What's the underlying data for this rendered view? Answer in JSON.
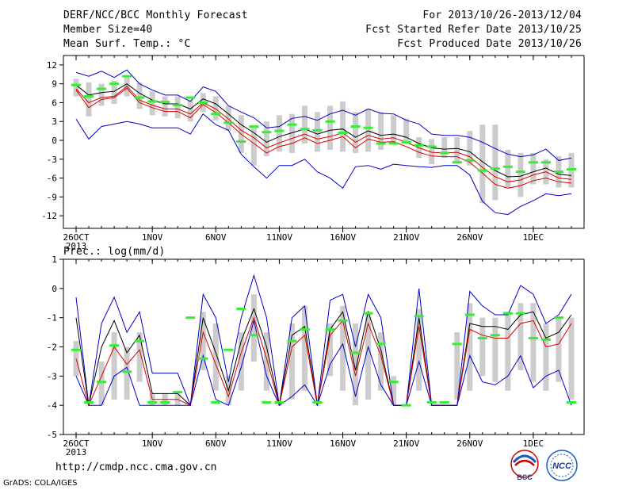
{
  "header": {
    "line1_left": "DERF/NCC/BCC Monthly Forecast",
    "line2_left": "Member Size=40",
    "line3_left": "Mean Surf. Temp.: °C",
    "line1_right": "For 2013/10/26-2013/12/04",
    "line2_right": "Fcst Started Refer Date 2013/10/25",
    "line3_right": "Fcst Produced Date 2013/10/26"
  },
  "panel2_title": "Prec.: log(mm/d)",
  "footer": {
    "url": "http://cmdp.ncc.cma.gov.cn",
    "credit": "GrADS: COLA/IGES",
    "logo1_text": "BCC",
    "logo2_text": "NCC"
  },
  "colors": {
    "envelope": "#0000cc",
    "mean": "#000000",
    "lower": "#dd0000",
    "obs": "#33ee33",
    "box": "#cccccc",
    "axis": "#000000"
  },
  "chart_data": [
    {
      "type": "line",
      "title": "Mean Surf. Temp.: °C",
      "x_tick_labels": [
        "26OCT",
        "1NOV",
        "6NOV",
        "11NOV",
        "16NOV",
        "21NOV",
        "26NOV",
        "1DEC"
      ],
      "x_tick_sub": "2013",
      "x_tick_days": [
        1,
        7,
        12,
        17,
        22,
        27,
        32,
        37
      ],
      "xlim": [
        0,
        41
      ],
      "ylim": [
        -14,
        13.5
      ],
      "y_ticks": [
        12,
        9,
        6,
        3,
        0,
        -3,
        -6,
        -9,
        -12
      ],
      "grid": false,
      "days": [
        1,
        2,
        3,
        4,
        5,
        6,
        7,
        8,
        9,
        10,
        11,
        12,
        13,
        14,
        15,
        16,
        17,
        18,
        19,
        20,
        21,
        22,
        23,
        24,
        25,
        26,
        27,
        28,
        29,
        30,
        31,
        32,
        33,
        34,
        35,
        36,
        37,
        38,
        39,
        40
      ],
      "series": [
        {
          "role": "max",
          "values": [
            10.8,
            10.2,
            11.0,
            10.0,
            11.2,
            9.0,
            8.0,
            7.2,
            7.2,
            6.2,
            8.5,
            7.8,
            5.5,
            4.5,
            3.6,
            2.0,
            2.2,
            3.5,
            3.8,
            3.2,
            4.2,
            4.8,
            4.0,
            5.0,
            4.3,
            4.2,
            3.2,
            2.6,
            1.0,
            0.8,
            0.8,
            0.5,
            -0.3,
            -1.3,
            -2.2,
            -2.6,
            -2.3,
            -1.4,
            -3.2,
            -2.8
          ]
        },
        {
          "role": "mean",
          "values": [
            8.8,
            7.2,
            7.6,
            7.8,
            9.0,
            7.5,
            6.4,
            5.8,
            5.8,
            5.0,
            6.6,
            5.8,
            4.2,
            2.5,
            1.2,
            -0.3,
            0.6,
            1.2,
            1.8,
            1.0,
            1.6,
            1.8,
            0.5,
            1.5,
            0.8,
            1.0,
            0.5,
            -0.5,
            -1.2,
            -1.4,
            -1.3,
            -1.8,
            -3.4,
            -4.8,
            -5.8,
            -5.7,
            -5.0,
            -4.4,
            -5.4,
            -5.6
          ]
        },
        {
          "role": "inner",
          "values": [
            8.2,
            6.0,
            6.8,
            7.0,
            8.6,
            6.4,
            5.6,
            5.0,
            5.0,
            4.2,
            6.0,
            5.0,
            3.4,
            1.6,
            0.4,
            -1.2,
            -0.4,
            0.3,
            1.0,
            0.2,
            0.6,
            1.2,
            -0.3,
            0.8,
            0.2,
            0.4,
            -0.3,
            -1.2,
            -1.9,
            -2.0,
            -1.9,
            -2.6,
            -4.3,
            -5.8,
            -6.6,
            -6.3,
            -5.5,
            -5.0,
            -6.0,
            -6.2
          ]
        },
        {
          "role": "lower",
          "values": [
            8.0,
            5.2,
            6.5,
            6.8,
            8.3,
            6.0,
            5.2,
            4.6,
            4.6,
            3.6,
            5.7,
            4.4,
            2.8,
            1.0,
            -0.5,
            -2.0,
            -1.0,
            -0.5,
            0.4,
            -0.5,
            0.0,
            0.6,
            -1.2,
            0.2,
            -0.3,
            -0.2,
            -1.0,
            -1.9,
            -2.5,
            -2.6,
            -2.6,
            -3.5,
            -5.2,
            -7.0,
            -7.6,
            -7.2,
            -6.4,
            -6.0,
            -6.6,
            -6.8
          ]
        },
        {
          "role": "min",
          "values": [
            3.4,
            0.2,
            2.2,
            2.6,
            3.0,
            2.6,
            2.0,
            2.0,
            2.0,
            1.0,
            4.2,
            2.5,
            1.6,
            -2.2,
            -4.2,
            -6.0,
            -4.0,
            -4.0,
            -3.0,
            -5.0,
            -6.0,
            -7.6,
            -4.2,
            -4.0,
            -4.6,
            -3.8,
            -4.0,
            -4.2,
            -4.3,
            -4.0,
            -4.0,
            -5.5,
            -9.7,
            -11.5,
            -11.8,
            -10.5,
            -9.6,
            -8.5,
            -8.8,
            -8.5
          ]
        },
        {
          "role": "obs",
          "values": [
            8.8,
            7.0,
            8.2,
            9.0,
            10.2,
            6.8,
            6.2,
            6.1,
            5.6,
            6.8,
            6.0,
            4.2,
            2.8,
            -0.2,
            2.2,
            1.3,
            1.5,
            2.5,
            1.8,
            1.6,
            3.0,
            1.2,
            2.2,
            2.0,
            -0.5,
            -0.5,
            -0.3,
            -0.8,
            -1.0,
            -2.0,
            -3.5,
            -3.2,
            -4.8,
            -4.5,
            -4.2,
            -5.0,
            -3.5,
            -3.5,
            -5.0,
            -4.6
          ]
        }
      ],
      "box_ranges": [
        [
          7.0,
          9.8
        ],
        [
          3.8,
          9.2
        ],
        [
          5.5,
          9.0
        ],
        [
          5.8,
          9.5
        ],
        [
          7.0,
          10.0
        ],
        [
          5.0,
          9.2
        ],
        [
          4.0,
          7.8
        ],
        [
          3.8,
          7.0
        ],
        [
          3.5,
          7.0
        ],
        [
          3.0,
          6.5
        ],
        [
          4.5,
          7.5
        ],
        [
          3.2,
          7.0
        ],
        [
          1.5,
          5.5
        ],
        [
          -2.0,
          4.0
        ],
        [
          -4.0,
          2.2
        ],
        [
          -2.5,
          3.0
        ],
        [
          -1.8,
          4.0
        ],
        [
          -2.0,
          4.2
        ],
        [
          -0.5,
          5.5
        ],
        [
          -1.8,
          4.5
        ],
        [
          -1.5,
          5.5
        ],
        [
          -1.8,
          6.2
        ],
        [
          -2.0,
          4.5
        ],
        [
          -1.8,
          5.0
        ],
        [
          -1.5,
          4.5
        ],
        [
          -0.5,
          4.0
        ],
        [
          -0.5,
          3.5
        ],
        [
          -2.8,
          0.5
        ],
        [
          -3.8,
          0.2
        ],
        [
          -2.8,
          0.5
        ],
        [
          -3.5,
          0.5
        ],
        [
          -4.0,
          1.5
        ],
        [
          -10.0,
          2.5
        ],
        [
          -9.5,
          2.5
        ],
        [
          -7.5,
          -1.5
        ],
        [
          -9.0,
          -2.0
        ],
        [
          -7.0,
          -2.0
        ],
        [
          -7.0,
          -3.0
        ],
        [
          -7.5,
          -2.5
        ],
        [
          -7.5,
          -2.0
        ]
      ]
    },
    {
      "type": "line",
      "title": "Prec.: log(mm/d)",
      "x_tick_labels": [
        "26OCT",
        "1NOV",
        "6NOV",
        "11NOV",
        "16NOV",
        "21NOV",
        "26NOV",
        "1DEC"
      ],
      "x_tick_sub": "2013",
      "x_tick_days": [
        1,
        7,
        12,
        17,
        22,
        27,
        32,
        37
      ],
      "xlim": [
        0,
        41
      ],
      "ylim": [
        -5,
        1
      ],
      "y_ticks": [
        1,
        0,
        -1,
        -2,
        -3,
        -4,
        -5
      ],
      "grid": false,
      "days": [
        1,
        2,
        3,
        4,
        5,
        6,
        7,
        8,
        9,
        10,
        11,
        12,
        13,
        14,
        15,
        16,
        17,
        18,
        19,
        20,
        21,
        22,
        23,
        24,
        25,
        26,
        27,
        28,
        29,
        30,
        31,
        32,
        33,
        34,
        35,
        36,
        37,
        38,
        39,
        40
      ],
      "series": [
        {
          "role": "max",
          "values": [
            -0.3,
            -4.0,
            -1.2,
            -0.3,
            -1.5,
            -0.8,
            -2.9,
            -2.9,
            -2.9,
            -4.0,
            -0.2,
            -1.0,
            -3.2,
            -1.0,
            0.45,
            -1.0,
            -4.0,
            -1.0,
            -0.6,
            -4.0,
            -0.4,
            -0.2,
            -2.0,
            -0.2,
            -1.0,
            -4.0,
            -4.0,
            0.0,
            -4.0,
            -4.0,
            -4.0,
            -0.1,
            -0.6,
            -0.9,
            -0.9,
            0.1,
            -0.2,
            -1.2,
            -0.9,
            -0.2
          ]
        },
        {
          "role": "mean",
          "values": [
            -1.0,
            -4.0,
            -2.0,
            -1.1,
            -2.2,
            -1.6,
            -3.6,
            -3.6,
            -3.6,
            -4.0,
            -1.0,
            -2.2,
            -3.5,
            -1.8,
            -0.7,
            -2.0,
            -4.0,
            -1.6,
            -1.3,
            -4.0,
            -1.4,
            -0.8,
            -2.8,
            -0.8,
            -2.1,
            -4.0,
            -4.0,
            -1.0,
            -4.0,
            -4.0,
            -4.0,
            -1.2,
            -1.3,
            -1.3,
            -1.4,
            -0.9,
            -0.8,
            -1.7,
            -1.5,
            -0.9
          ]
        },
        {
          "role": "lower",
          "values": [
            -2.4,
            -4.0,
            -3.0,
            -2.0,
            -2.6,
            -2.1,
            -3.8,
            -3.8,
            -3.8,
            -4.0,
            -1.5,
            -2.6,
            -3.7,
            -2.2,
            -1.0,
            -2.4,
            -4.0,
            -2.0,
            -1.6,
            -4.0,
            -1.6,
            -1.1,
            -3.0,
            -1.2,
            -2.3,
            -4.0,
            -4.0,
            -1.3,
            -4.0,
            -4.0,
            -4.0,
            -1.4,
            -1.6,
            -1.7,
            -1.7,
            -1.2,
            -1.1,
            -2.0,
            -1.9,
            -1.2
          ]
        },
        {
          "role": "min",
          "values": [
            -3.0,
            -4.0,
            -4.0,
            -3.0,
            -2.7,
            -4.0,
            -4.0,
            -4.0,
            -4.0,
            -4.0,
            -2.3,
            -3.8,
            -4.0,
            -2.7,
            -1.1,
            -3.0,
            -4.0,
            -3.7,
            -3.3,
            -4.0,
            -2.6,
            -1.9,
            -3.7,
            -2.0,
            -3.3,
            -4.0,
            -4.0,
            -2.5,
            -4.0,
            -4.0,
            -4.0,
            -2.3,
            -3.2,
            -3.3,
            -3.0,
            -2.3,
            -3.4,
            -3.0,
            -2.8,
            -4.0
          ]
        },
        {
          "role": "obs",
          "values": [
            -2.1,
            -3.9,
            -3.2,
            -1.95,
            -2.85,
            -1.8,
            -3.9,
            -3.9,
            -3.55,
            -1.0,
            -2.4,
            -3.9,
            -2.1,
            -0.7,
            -1.6,
            -3.9,
            -3.9,
            -1.8,
            -1.4,
            -3.9,
            -1.4,
            -1.1,
            -2.2,
            -0.85,
            -1.9,
            -3.2,
            -4.0,
            -0.95,
            -3.9,
            -3.9,
            -1.9,
            -0.9,
            -1.7,
            -1.6,
            -0.85,
            -0.85,
            -1.7,
            -1.75,
            -1.0,
            -3.9
          ]
        }
      ],
      "box_ranges": [
        [
          -3.0,
          -1.8
        ],
        [
          -4.0,
          -4.0
        ],
        [
          -4.0,
          -2.5
        ],
        [
          -3.8,
          -1.5
        ],
        [
          -3.8,
          -2.0
        ],
        [
          -3.2,
          -1.5
        ],
        [
          -4.0,
          -3.6
        ],
        [
          -4.0,
          -3.6
        ],
        [
          -4.0,
          -3.6
        ],
        [
          -4.0,
          -4.0
        ],
        [
          -2.8,
          -0.8
        ],
        [
          -3.5,
          -1.2
        ],
        [
          -4.0,
          -3.0
        ],
        [
          -3.5,
          -1.5
        ],
        [
          -2.5,
          -0.2
        ],
        [
          -3.5,
          -1.5
        ],
        [
          -4.0,
          -4.0
        ],
        [
          -3.8,
          -1.2
        ],
        [
          -3.5,
          -0.6
        ],
        [
          -4.0,
          -4.0
        ],
        [
          -3.0,
          -1.2
        ],
        [
          -3.5,
          -0.6
        ],
        [
          -4.0,
          -1.2
        ],
        [
          -3.8,
          -0.8
        ],
        [
          -3.5,
          -1.5
        ],
        [
          -4.0,
          -3.0
        ],
        [
          -4.0,
          -4.0
        ],
        [
          -3.5,
          -0.7
        ],
        [
          -4.0,
          -4.0
        ],
        [
          -4.0,
          -4.0
        ],
        [
          -3.8,
          -1.5
        ],
        [
          -3.5,
          -0.5
        ],
        [
          -3.0,
          -1.0
        ],
        [
          -3.2,
          -1.0
        ],
        [
          -3.5,
          -0.8
        ],
        [
          -2.8,
          -0.5
        ],
        [
          -3.2,
          -0.5
        ],
        [
          -3.5,
          -1.2
        ],
        [
          -3.2,
          -1.0
        ],
        [
          -3.8,
          -1.0
        ]
      ]
    }
  ]
}
